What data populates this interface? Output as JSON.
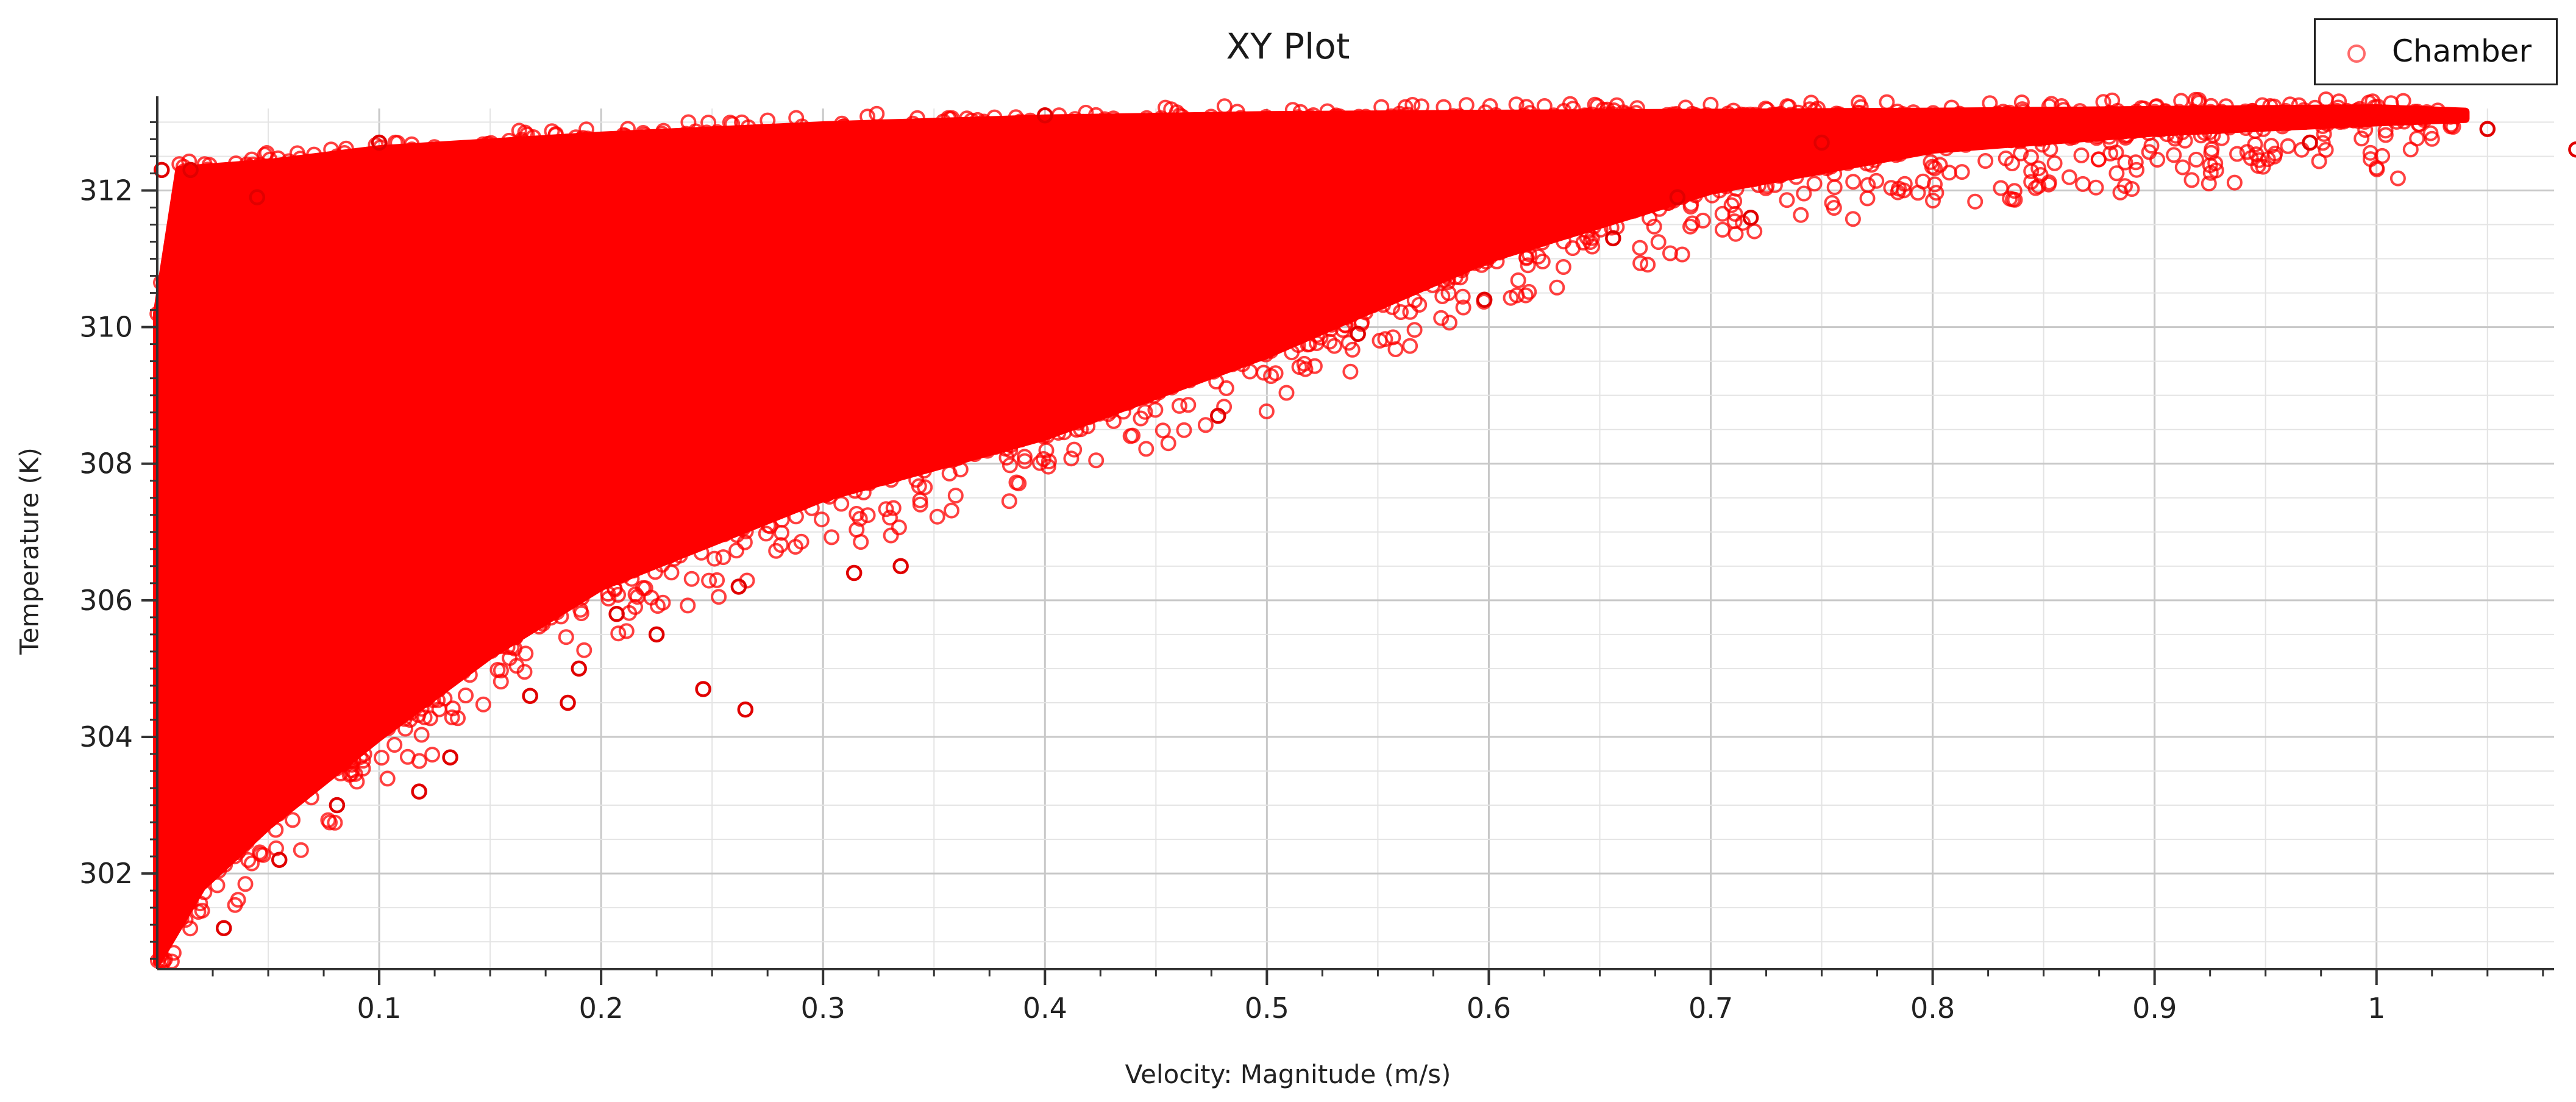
{
  "chart_data": {
    "type": "scatter",
    "title": "XY Plot",
    "xlabel": "Velocity: Magnitude (m/s)",
    "ylabel": "Temperature (K)",
    "xlim": [
      0,
      1.08
    ],
    "ylim": [
      300.6,
      313.2
    ],
    "x_ticks": [
      0.1,
      0.2,
      0.3,
      0.4,
      0.5,
      0.6,
      0.7,
      0.8,
      0.9,
      1
    ],
    "x_tick_labels": [
      "0.1",
      "0.2",
      "0.3",
      "0.4",
      "0.5",
      "0.6",
      "0.7",
      "0.8",
      "0.9",
      "1"
    ],
    "y_ticks": [
      302,
      304,
      306,
      308,
      310,
      312
    ],
    "y_tick_labels": [
      "302",
      "304",
      "306",
      "308",
      "310",
      "312"
    ],
    "grid": true,
    "legend_position": "top-right",
    "series": [
      {
        "name": "Chamber",
        "color": "#ff0000",
        "marker": "open-circle",
        "note_shape": "dense cloud",
        "envelope": {
          "upper": [
            [
              0.0,
              310.2
            ],
            [
              0.01,
              312.3
            ],
            [
              0.05,
              312.4
            ],
            [
              0.1,
              312.6
            ],
            [
              0.2,
              312.8
            ],
            [
              0.3,
              312.95
            ],
            [
              0.4,
              313.05
            ],
            [
              0.5,
              313.1
            ],
            [
              0.6,
              313.12
            ],
            [
              0.8,
              313.15
            ],
            [
              1.0,
              313.2
            ],
            [
              1.04,
              313.15
            ]
          ],
          "lower": [
            [
              0.0,
              300.7
            ],
            [
              0.02,
              301.8
            ],
            [
              0.05,
              302.7
            ],
            [
              0.1,
              304.0
            ],
            [
              0.15,
              305.2
            ],
            [
              0.2,
              306.2
            ],
            [
              0.3,
              307.5
            ],
            [
              0.4,
              308.4
            ],
            [
              0.5,
              309.6
            ],
            [
              0.6,
              311.0
            ],
            [
              0.7,
              312.0
            ],
            [
              0.8,
              312.6
            ],
            [
              0.9,
              312.85
            ],
            [
              1.0,
              313.0
            ],
            [
              1.04,
              313.05
            ]
          ]
        },
        "outliers": [
          [
            0.246,
            304.7
          ],
          [
            0.265,
            304.4
          ],
          [
            0.335,
            306.5
          ],
          [
            0.314,
            306.4
          ],
          [
            0.185,
            304.5
          ],
          [
            0.168,
            304.6
          ],
          [
            0.118,
            303.2
          ],
          [
            0.081,
            303.0
          ],
          [
            0.132,
            303.7
          ],
          [
            0.262,
            306.2
          ],
          [
            0.718,
            311.6
          ],
          [
            0.685,
            311.9
          ],
          [
            1.09,
            312.6
          ],
          [
            1.05,
            312.9
          ],
          [
            0.656,
            311.3
          ],
          [
            0.598,
            310.4
          ],
          [
            0.541,
            309.9
          ],
          [
            0.478,
            308.7
          ],
          [
            0.225,
            305.5
          ],
          [
            0.207,
            305.8
          ],
          [
            0.19,
            305.0
          ],
          [
            0.055,
            302.2
          ],
          [
            0.03,
            301.2
          ],
          [
            0.002,
            312.3
          ],
          [
            0.015,
            312.3
          ],
          [
            0.045,
            311.9
          ],
          [
            0.1,
            312.7
          ],
          [
            0.4,
            313.1
          ],
          [
            0.75,
            312.7
          ],
          [
            0.97,
            312.7
          ]
        ]
      }
    ]
  }
}
